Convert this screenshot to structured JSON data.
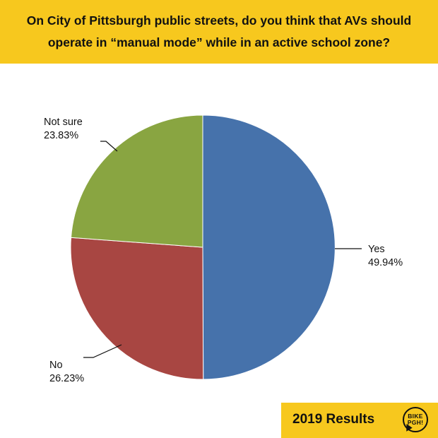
{
  "header": {
    "line1": "On City of Pittsburgh public streets, do you think that AVs should",
    "line2": "operate in “manual mode” while in an active school zone?"
  },
  "colors": {
    "banner": "#f7c81e",
    "yes": "#4672ab",
    "no": "#a84642",
    "not_sure": "#89a541"
  },
  "chart_data": {
    "type": "pie",
    "title": "On City of Pittsburgh public streets, do you think that AVs should operate in “manual mode” while in an active school zone?",
    "slices": [
      {
        "label": "Yes",
        "value": 49.94,
        "display": "49.94%",
        "color": "#4672ab"
      },
      {
        "label": "No",
        "value": 26.23,
        "display": "26.23%",
        "color": "#a84642"
      },
      {
        "label": "Not sure",
        "value": 23.83,
        "display": "23.83%",
        "color": "#89a541"
      }
    ],
    "start_angle_deg": 0,
    "direction": "clockwise",
    "legend": "none"
  },
  "footer": {
    "results": "2019 Results",
    "logo_line1": "BIKE",
    "logo_line2": "PGH!"
  }
}
